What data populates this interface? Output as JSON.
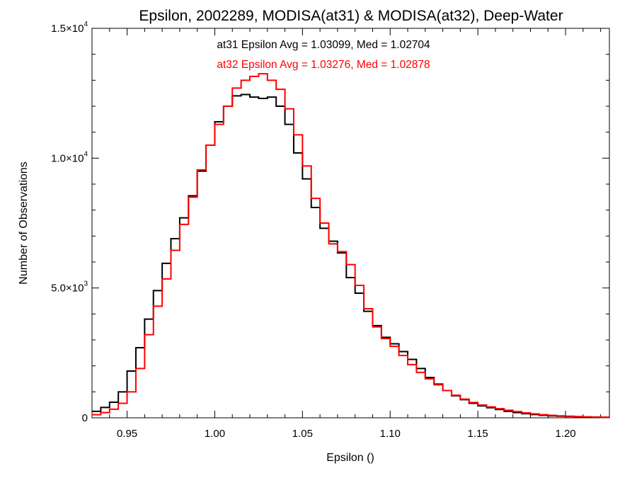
{
  "chart_data": {
    "type": "line",
    "title": "Epsilon, 2002289, MODISA(at31) & MODISA(at32), Deep-Water",
    "xlabel": "Epsilon ()",
    "ylabel": "Number of Observations",
    "xlim": [
      0.93,
      1.225
    ],
    "ylim": [
      0,
      15000
    ],
    "x_ticks": [
      {
        "value": 0.95,
        "label": "0.95"
      },
      {
        "value": 1.0,
        "label": "1.00"
      },
      {
        "value": 1.05,
        "label": "1.05"
      },
      {
        "value": 1.1,
        "label": "1.10"
      },
      {
        "value": 1.15,
        "label": "1.15"
      },
      {
        "value": 1.2,
        "label": "1.20"
      }
    ],
    "y_ticks": [
      {
        "value": 0,
        "mantissa": "0",
        "exponent": ""
      },
      {
        "value": 5000,
        "mantissa": "5.0×10",
        "exponent": "3"
      },
      {
        "value": 10000,
        "mantissa": "1.0×10",
        "exponent": "4"
      },
      {
        "value": 15000,
        "mantissa": "1.5×10",
        "exponent": "4"
      }
    ],
    "x_minor_step": 0.01,
    "y_minor_step": 1000,
    "step_style": "histogram",
    "series": [
      {
        "name": "at31",
        "color": "#000000",
        "annotation": "at31 Epsilon Avg = 1.03099, Med = 1.02704",
        "x": [
          0.93,
          0.935,
          0.94,
          0.945,
          0.95,
          0.955,
          0.96,
          0.965,
          0.97,
          0.975,
          0.98,
          0.985,
          0.99,
          0.995,
          1.0,
          1.005,
          1.01,
          1.015,
          1.02,
          1.025,
          1.03,
          1.035,
          1.04,
          1.045,
          1.05,
          1.055,
          1.06,
          1.065,
          1.07,
          1.075,
          1.08,
          1.085,
          1.09,
          1.095,
          1.1,
          1.105,
          1.11,
          1.115,
          1.12,
          1.125,
          1.13,
          1.135,
          1.14,
          1.145,
          1.15,
          1.155,
          1.16,
          1.165,
          1.17,
          1.175,
          1.18,
          1.185,
          1.19,
          1.195,
          1.2,
          1.205,
          1.21,
          1.215,
          1.22,
          1.225
        ],
        "y": [
          250,
          400,
          600,
          1000,
          1800,
          2700,
          3800,
          4900,
          5950,
          6900,
          7700,
          8550,
          9500,
          10500,
          11400,
          12000,
          12400,
          12450,
          12350,
          12300,
          12350,
          12000,
          11300,
          10200,
          9200,
          8100,
          7300,
          6800,
          6350,
          5400,
          4800,
          4100,
          3550,
          3100,
          2850,
          2550,
          2250,
          1900,
          1550,
          1300,
          1050,
          850,
          700,
          560,
          460,
          390,
          320,
          250,
          200,
          160,
          125,
          95,
          75,
          60,
          50,
          40,
          30,
          25,
          20,
          15
        ]
      },
      {
        "name": "at32",
        "color": "#ff0000",
        "annotation": "at32 Epsilon Avg = 1.03276, Med = 1.02878",
        "x": [
          0.93,
          0.935,
          0.94,
          0.945,
          0.95,
          0.955,
          0.96,
          0.965,
          0.97,
          0.975,
          0.98,
          0.985,
          0.99,
          0.995,
          1.0,
          1.005,
          1.01,
          1.015,
          1.02,
          1.025,
          1.03,
          1.035,
          1.04,
          1.045,
          1.05,
          1.055,
          1.06,
          1.065,
          1.07,
          1.075,
          1.08,
          1.085,
          1.09,
          1.095,
          1.1,
          1.105,
          1.11,
          1.115,
          1.12,
          1.125,
          1.13,
          1.135,
          1.14,
          1.145,
          1.15,
          1.155,
          1.16,
          1.165,
          1.17,
          1.175,
          1.18,
          1.185,
          1.19,
          1.195,
          1.2,
          1.205,
          1.21,
          1.215,
          1.22,
          1.225
        ],
        "y": [
          120,
          200,
          330,
          560,
          1000,
          1900,
          3200,
          4300,
          5350,
          6450,
          7450,
          8500,
          9550,
          10500,
          11300,
          12000,
          12700,
          13000,
          13150,
          13250,
          13000,
          12650,
          11900,
          10900,
          9700,
          8450,
          7500,
          6700,
          6400,
          5900,
          5100,
          4200,
          3500,
          3050,
          2750,
          2400,
          2050,
          1750,
          1500,
          1270,
          1050,
          870,
          720,
          590,
          490,
          420,
          350,
          290,
          240,
          190,
          150,
          120,
          95,
          75,
          60,
          48,
          38,
          30,
          22,
          18
        ]
      }
    ]
  }
}
